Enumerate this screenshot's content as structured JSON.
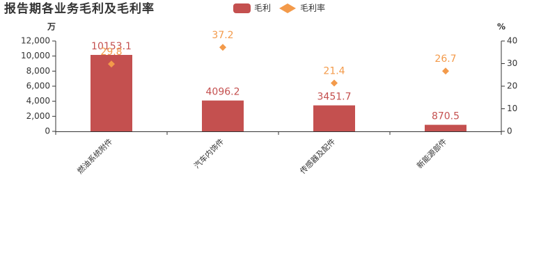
{
  "chart_data": {
    "type": "bar",
    "title": "报告期各业务毛利及毛利率",
    "y_label": "万",
    "y2_label": "%",
    "categories": [
      "燃油系统附件",
      "汽车内饰件",
      "传感器及配件",
      "新能源部件"
    ],
    "series": [
      {
        "name": "毛利",
        "type": "bar",
        "color": "#c4504f",
        "values": [
          10153.1,
          4096.2,
          3451.7,
          870.5
        ]
      },
      {
        "name": "毛利率",
        "type": "scatter",
        "axis": "y2",
        "color": "#f39a4a",
        "values": [
          29.8,
          37.2,
          21.4,
          26.7
        ]
      }
    ],
    "ylim": [
      0,
      12000
    ],
    "yticks": [
      0,
      {
        "value": 2000,
        "label": "2,000"
      },
      {
        "value": 4000,
        "label": "4,000"
      },
      {
        "value": 6000,
        "label": "6,000"
      },
      {
        "value": 8000,
        "label": "8,000"
      },
      {
        "value": 10000,
        "label": "10,000"
      },
      {
        "value": 12000,
        "label": "12,000"
      }
    ],
    "y2lim": [
      0,
      40
    ],
    "y2ticks": [
      0,
      10,
      20,
      30,
      40
    ]
  }
}
